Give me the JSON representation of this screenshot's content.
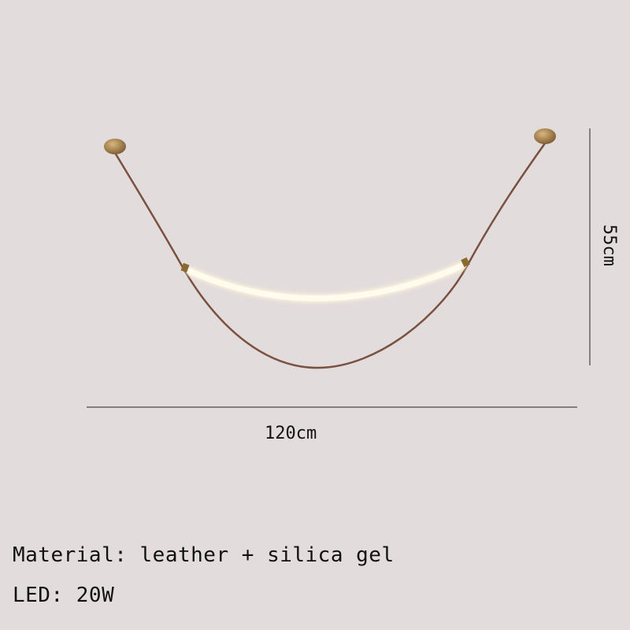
{
  "product": {
    "width_label": "120cm",
    "height_label": "55cm",
    "specs": [
      {
        "text": "Material: leather + silica gel"
      },
      {
        "text": "LED: 20W"
      }
    ]
  },
  "colors": {
    "background": "#e2dcdc",
    "strap": "#7a5140",
    "brass": "#a6824f",
    "led": "#fffbee"
  }
}
